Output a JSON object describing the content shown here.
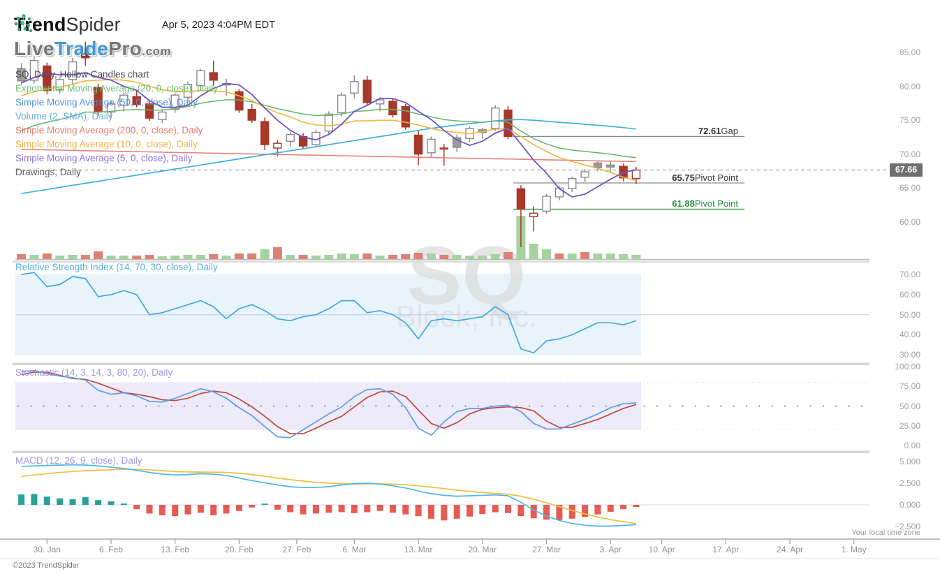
{
  "header": {
    "brand_bold": "Trend",
    "brand_light": "Spider",
    "timestamp": "Apr 5, 2023 4:04PM EDT",
    "watermark_logo": {
      "part1": "Live",
      "part2": "Trade",
      "part3": "Pro",
      "part4": ".com"
    }
  },
  "chart_title": "SQ, Daily, Hollow Candles chart",
  "legend": {
    "items": [
      {
        "label": "Exponential Moving Average (20, 0, close), Daily",
        "color": "#6fbf73"
      },
      {
        "label": "Simple Moving Average (50, 0, close), Daily",
        "color": "#4f93d9"
      },
      {
        "label": "Volume (2, SMA), Daily",
        "color": "#64aee4"
      },
      {
        "label": "Simple Moving Average (200, 0, close), Daily",
        "color": "#e57a6e"
      },
      {
        "label": "Simple Moving Average (10, 0, close), Daily",
        "color": "#f0b23e"
      },
      {
        "label": "Simple Moving Average (5, 0, close), Daily",
        "color": "#8d6fe0"
      },
      {
        "label": "Drawings, Daily",
        "color": "#5f5f5f"
      }
    ]
  },
  "indicator_titles": {
    "rsi": "Relative Strength Index (14, 70, 30, close), Daily",
    "stoch": "Stochastic (14, 3, 14, 3, 80, 20), Daily",
    "macd": "MACD (12, 26, 9, close), Daily"
  },
  "watermark": {
    "symbol": "SQ",
    "company": "Block, Inc."
  },
  "annotations": {
    "gap": {
      "price": "72.61",
      "label": "Gap"
    },
    "pivot_upper": {
      "price": "65.75",
      "label": "Pivot Point"
    },
    "pivot_lower": {
      "price": "61.88",
      "label": "Pivot Point"
    },
    "last_price": "67.66"
  },
  "axes": {
    "price_ticks": [
      {
        "label": "85.00",
        "v": 85
      },
      {
        "label": "80.00",
        "v": 80
      },
      {
        "label": "75.00",
        "v": 75
      },
      {
        "label": "70.00",
        "v": 70
      },
      {
        "label": "65.00",
        "v": 65
      },
      {
        "label": "60.00",
        "v": 60
      }
    ],
    "rsi_ticks": [
      {
        "label": "70.00",
        "v": 70
      },
      {
        "label": "60.00",
        "v": 60
      },
      {
        "label": "50.00",
        "v": 50
      },
      {
        "label": "40.00",
        "v": 40
      },
      {
        "label": "30.00",
        "v": 30
      }
    ],
    "stoch_ticks": [
      {
        "label": "100.00",
        "v": 100
      },
      {
        "label": "75.00",
        "v": 75
      },
      {
        "label": "50.00",
        "v": 50
      },
      {
        "label": "25.00",
        "v": 25
      },
      {
        "label": "0.00",
        "v": 0
      }
    ],
    "macd_ticks": [
      {
        "label": "5.000",
        "v": 5
      },
      {
        "label": "2.500",
        "v": 2.5
      },
      {
        "label": "0.000",
        "v": 0
      },
      {
        "label": "−2.500",
        "v": -2.5
      }
    ],
    "dates": [
      [
        "30. Jan",
        2
      ],
      [
        "6. Feb",
        7
      ],
      [
        "13. Feb",
        12
      ],
      [
        "20. Feb",
        17
      ],
      [
        "27. Feb",
        21.5
      ],
      [
        "6. Mar",
        26
      ],
      [
        "13. Mar",
        31
      ],
      [
        "20. Mar",
        36
      ],
      [
        "27. Mar",
        41
      ],
      [
        "3. Apr",
        46
      ],
      [
        "10. Apr",
        50
      ],
      [
        "17. Apr",
        55
      ],
      [
        "24. Apr",
        60
      ],
      [
        "1. May",
        65
      ]
    ],
    "timezone_note": "Your local time zone"
  },
  "footer": {
    "copyright": "©2023 TrendSpider"
  },
  "chart_data": {
    "type": "candlestick",
    "symbol": "SQ",
    "company": "Block, Inc.",
    "timeframe": "Daily",
    "style": "Hollow Candles",
    "levels": {
      "gap": 72.61,
      "pivot_upper": 65.75,
      "pivot_lower": 61.88,
      "last_close": 67.66
    },
    "candles": [
      [
        82.6,
        83.4,
        80.2,
        80.8,
        "fg"
      ],
      [
        80.9,
        84.4,
        80.4,
        83.8,
        "hg"
      ],
      [
        83.0,
        83.5,
        78.8,
        79.4,
        "fr"
      ],
      [
        79.5,
        81.3,
        78.9,
        81.0,
        "hg"
      ],
      [
        81.0,
        84.2,
        80.2,
        83.6,
        "hg"
      ],
      [
        84.8,
        86.6,
        83.0,
        84.2,
        "fr"
      ],
      [
        79.8,
        80.4,
        75.6,
        76.2,
        "fr"
      ],
      [
        76.2,
        77.9,
        75.4,
        77.4,
        "hg"
      ],
      [
        77.2,
        79.1,
        76.3,
        78.7,
        "hg"
      ],
      [
        78.5,
        79.3,
        76.9,
        77.3,
        "fr"
      ],
      [
        77.4,
        78.0,
        74.9,
        75.3,
        "fr"
      ],
      [
        75.1,
        76.6,
        74.6,
        76.2,
        "hg"
      ],
      [
        76.6,
        79.0,
        76.1,
        78.7,
        "hg"
      ],
      [
        78.4,
        80.7,
        77.6,
        80.3,
        "hg"
      ],
      [
        80.1,
        82.6,
        79.4,
        82.3,
        "hg"
      ],
      [
        82.0,
        83.8,
        80.1,
        80.9,
        "fr"
      ],
      [
        80.2,
        81.1,
        78.6,
        80.4,
        "hg"
      ],
      [
        79.2,
        79.6,
        76.1,
        76.5,
        "fr"
      ],
      [
        76.6,
        77.4,
        74.6,
        75.0,
        "fr"
      ],
      [
        74.8,
        75.4,
        70.6,
        71.4,
        "fr"
      ],
      [
        70.9,
        72.1,
        69.7,
        71.6,
        "hr"
      ],
      [
        71.9,
        73.3,
        71.1,
        72.9,
        "hg"
      ],
      [
        72.6,
        73.1,
        70.7,
        71.2,
        "fr"
      ],
      [
        71.4,
        73.6,
        71.0,
        73.2,
        "hg"
      ],
      [
        73.4,
        76.3,
        72.9,
        75.9,
        "hg"
      ],
      [
        76.1,
        79.1,
        75.6,
        78.7,
        "hg"
      ],
      [
        79.0,
        81.6,
        78.2,
        80.7,
        "hg"
      ],
      [
        80.9,
        81.5,
        77.2,
        77.6,
        "fr"
      ],
      [
        77.4,
        78.4,
        76.3,
        78.0,
        "hg"
      ],
      [
        77.8,
        78.2,
        75.4,
        75.8,
        "fr"
      ],
      [
        77.0,
        77.4,
        73.6,
        74.0,
        "fr"
      ],
      [
        72.8,
        73.4,
        68.4,
        70.0,
        "fr"
      ],
      [
        70.2,
        72.6,
        69.6,
        72.2,
        "hg"
      ],
      [
        70.8,
        71.5,
        68.3,
        70.9,
        "hr"
      ],
      [
        71.0,
        72.9,
        70.3,
        72.4,
        "fg"
      ],
      [
        72.3,
        74.1,
        71.8,
        73.8,
        "hg"
      ],
      [
        73.2,
        73.9,
        72.3,
        73.6,
        "fg"
      ],
      [
        73.8,
        77.2,
        73.4,
        76.8,
        "hg"
      ],
      [
        76.5,
        77.1,
        72.2,
        72.6,
        "fr"
      ],
      [
        64.9,
        65.4,
        56.3,
        61.88,
        "fr"
      ],
      [
        60.8,
        62.3,
        58.6,
        61.3,
        "hr"
      ],
      [
        61.6,
        64.1,
        61.2,
        63.8,
        "hg"
      ],
      [
        63.7,
        65.3,
        63.2,
        65.0,
        "hg"
      ],
      [
        64.9,
        66.7,
        64.4,
        66.4,
        "hg"
      ],
      [
        66.6,
        67.8,
        65.9,
        67.4,
        "hg"
      ],
      [
        68.7,
        69.1,
        67.5,
        68.0,
        "fg"
      ],
      [
        68.1,
        68.9,
        67.3,
        68.4,
        "fg"
      ],
      [
        68.2,
        68.6,
        66.0,
        66.5,
        "fr"
      ],
      [
        66.4,
        68.1,
        65.6,
        67.66,
        "hr"
      ]
    ],
    "volume": [
      [
        7,
        "r"
      ],
      [
        6,
        "g"
      ],
      [
        8,
        "r"
      ],
      [
        5,
        "g"
      ],
      [
        6,
        "g"
      ],
      [
        6,
        "r"
      ],
      [
        11,
        "r"
      ],
      [
        5,
        "g"
      ],
      [
        5,
        "g"
      ],
      [
        5,
        "r"
      ],
      [
        6,
        "r"
      ],
      [
        4,
        "g"
      ],
      [
        5,
        "g"
      ],
      [
        6,
        "g"
      ],
      [
        6,
        "g"
      ],
      [
        7,
        "r"
      ],
      [
        5,
        "g"
      ],
      [
        8,
        "r"
      ],
      [
        8,
        "r"
      ],
      [
        14,
        "g"
      ],
      [
        17,
        "r"
      ],
      [
        6,
        "g"
      ],
      [
        6,
        "r"
      ],
      [
        5,
        "g"
      ],
      [
        6,
        "g"
      ],
      [
        8,
        "g"
      ],
      [
        7,
        "g"
      ],
      [
        8,
        "r"
      ],
      [
        5,
        "g"
      ],
      [
        6,
        "r"
      ],
      [
        7,
        "r"
      ],
      [
        9,
        "r"
      ],
      [
        8,
        "g"
      ],
      [
        6,
        "r"
      ],
      [
        6,
        "g"
      ],
      [
        5,
        "g"
      ],
      [
        5,
        "g"
      ],
      [
        7,
        "g"
      ],
      [
        10,
        "r"
      ],
      [
        62,
        "g"
      ],
      [
        22,
        "g"
      ],
      [
        14,
        "g"
      ],
      [
        8,
        "r"
      ],
      [
        8,
        "g"
      ],
      [
        10,
        "r"
      ],
      [
        8,
        "g"
      ],
      [
        8,
        "g"
      ],
      [
        7,
        "g"
      ],
      [
        6,
        "g"
      ]
    ],
    "ema20": [
      73.5,
      74.2,
      74.7,
      75.1,
      75.6,
      76.2,
      76.2,
      76.3,
      76.5,
      76.6,
      76.5,
      76.5,
      76.7,
      77.0,
      77.5,
      77.8,
      78.0,
      78.0,
      77.7,
      77.2,
      76.7,
      76.3,
      75.9,
      75.7,
      75.7,
      75.9,
      76.3,
      76.4,
      76.6,
      76.6,
      76.4,
      75.9,
      75.5,
      75.1,
      74.9,
      74.8,
      74.7,
      74.9,
      74.7,
      73.4,
      72.3,
      71.5,
      70.9,
      70.6,
      70.4,
      70.2,
      70.0,
      69.7,
      69.5
    ],
    "sma50": [
      64.2,
      64.5,
      64.8,
      65.1,
      65.4,
      65.7,
      66.0,
      66.3,
      66.6,
      66.9,
      67.2,
      67.5,
      67.8,
      68.1,
      68.4,
      68.7,
      69.0,
      69.3,
      69.6,
      69.9,
      70.2,
      70.5,
      70.8,
      71.1,
      71.4,
      71.7,
      72.0,
      72.3,
      72.6,
      72.9,
      73.2,
      73.5,
      73.8,
      74.05,
      74.3,
      74.5,
      74.7,
      74.9,
      75.05,
      75.1,
      75.0,
      74.85,
      74.7,
      74.55,
      74.4,
      74.25,
      74.1,
      73.9,
      73.7
    ],
    "sma200": [
      70.7,
      70.66,
      70.63,
      70.59,
      70.55,
      70.51,
      70.48,
      70.44,
      70.4,
      70.36,
      70.33,
      70.29,
      70.25,
      70.21,
      70.18,
      70.14,
      70.1,
      70.06,
      70.03,
      69.99,
      69.95,
      69.91,
      69.88,
      69.84,
      69.8,
      69.76,
      69.73,
      69.69,
      69.65,
      69.61,
      69.58,
      69.54,
      69.5,
      69.46,
      69.43,
      69.39,
      69.35,
      69.31,
      69.28,
      69.24,
      69.2,
      69.16,
      69.13,
      69.09,
      69.05,
      69.01,
      68.98,
      68.94,
      68.9
    ],
    "sma10": [
      78.6,
      79.2,
      79.6,
      79.9,
      80.3,
      80.8,
      80.9,
      81.0,
      80.9,
      80.6,
      80.0,
      79.5,
      79.2,
      79.2,
      79.4,
      79.3,
      79.2,
      78.6,
      77.9,
      76.9,
      76.1,
      75.5,
      74.7,
      74.3,
      74.2,
      74.4,
      74.9,
      74.9,
      75.0,
      75.0,
      74.7,
      74.3,
      73.8,
      73.4,
      73.2,
      73.0,
      73.3,
      73.7,
      73.7,
      72.6,
      71.4,
      70.4,
      69.5,
      68.9,
      68.4,
      67.9,
      67.3,
      66.6,
      66.1
    ],
    "sma5": [
      80.5,
      81.3,
      81.9,
      81.7,
      81.7,
      82.0,
      81.3,
      80.9,
      80.0,
      79.4,
      77.9,
      76.9,
      76.9,
      77.2,
      78.6,
      79.7,
      80.4,
      80.2,
      78.8,
      76.8,
      75.0,
      73.5,
      72.5,
      72.1,
      72.9,
      74.4,
      76.3,
      77.2,
      78.2,
      78.2,
      77.6,
      76.3,
      75.1,
      73.5,
      72.1,
      71.3,
      71.9,
      73.1,
      73.8,
      71.5,
      69.1,
      67.2,
      64.9,
      63.7,
      64.1,
      65.2,
      66.3,
      67.3,
      67.7
    ],
    "rsi": [
      70,
      71,
      64,
      65,
      69,
      68,
      59,
      60,
      62,
      60,
      50,
      51,
      53,
      55,
      57,
      54,
      48,
      53,
      55,
      52,
      48,
      47,
      49,
      50,
      53,
      57,
      57,
      51,
      52,
      50,
      46,
      38,
      47,
      48,
      47,
      48,
      49,
      54,
      50,
      33,
      31,
      37,
      38,
      40,
      43,
      46,
      46,
      45,
      47
    ],
    "stoch_k": [
      94,
      95,
      91,
      88,
      86,
      83,
      70,
      65,
      67,
      63,
      56,
      55,
      60,
      66,
      72,
      68,
      60,
      48,
      38,
      24,
      11,
      10,
      20,
      30,
      40,
      49,
      62,
      71,
      72,
      65,
      48,
      22,
      13,
      30,
      43,
      47,
      47,
      50,
      51,
      43,
      28,
      21,
      21,
      27,
      33,
      40,
      48,
      53,
      54
    ],
    "stoch_d": [
      90,
      93,
      93,
      89,
      85,
      84,
      79,
      73,
      67,
      65,
      62,
      58,
      57,
      60,
      66,
      69,
      67,
      59,
      49,
      37,
      24,
      15,
      15,
      22,
      30,
      37,
      49,
      61,
      68,
      69,
      62,
      45,
      28,
      22,
      29,
      40,
      46,
      48,
      49,
      48,
      44,
      31,
      23,
      23,
      28,
      33,
      40,
      47,
      52
    ],
    "macd": [
      4.45,
      4.5,
      4.55,
      4.6,
      4.62,
      4.6,
      4.5,
      4.35,
      4.2,
      4.0,
      3.75,
      3.55,
      3.45,
      3.5,
      3.6,
      3.55,
      3.4,
      3.1,
      2.8,
      2.55,
      2.3,
      2.1,
      2.0,
      2.0,
      2.1,
      2.3,
      2.45,
      2.5,
      2.4,
      2.2,
      1.95,
      1.6,
      1.3,
      1.1,
      1.0,
      1.05,
      1.1,
      1.15,
      1.05,
      0.3,
      -0.6,
      -1.3,
      -1.8,
      -2.15,
      -2.35,
      -2.45,
      -2.45,
      -2.38,
      -2.28
    ],
    "macd_signal": [
      3.3,
      3.45,
      3.6,
      3.75,
      3.85,
      3.95,
      4.0,
      4.05,
      4.1,
      4.1,
      4.05,
      3.95,
      3.85,
      3.8,
      3.78,
      3.78,
      3.75,
      3.65,
      3.5,
      3.3,
      3.1,
      2.9,
      2.75,
      2.6,
      2.5,
      2.45,
      2.42,
      2.42,
      2.42,
      2.4,
      2.32,
      2.2,
      2.05,
      1.88,
      1.7,
      1.55,
      1.42,
      1.32,
      1.22,
      1.0,
      0.65,
      0.25,
      -0.2,
      -0.65,
      -1.05,
      -1.4,
      -1.7,
      -1.95,
      -2.15
    ],
    "macd_hist": [
      1.2,
      1.25,
      0.95,
      0.75,
      0.65,
      0.9,
      0.55,
      0.4,
      0.15,
      -0.5,
      -1.0,
      -1.2,
      -1.3,
      -1.1,
      -0.9,
      -1.2,
      -1.0,
      -0.7,
      -0.3,
      0.15,
      -0.55,
      -0.85,
      -1.1,
      -1.0,
      -0.9,
      -0.85,
      -0.95,
      -0.85,
      -0.7,
      -0.9,
      -1.1,
      -1.3,
      -1.6,
      -1.8,
      -1.6,
      -1.35,
      -1.05,
      -0.85,
      -0.95,
      -1.3,
      -1.55,
      -1.7,
      -1.75,
      -1.6,
      -1.4,
      -1.1,
      -0.8,
      -0.5,
      -0.25
    ],
    "colors": {
      "candle_up": "#8a8a8a",
      "candle_up_fill": "#9b9b9b",
      "candle_down": "#a8382a",
      "vol_up": "#a4d3a0",
      "vol_down": "#dd8176",
      "ema20": "#66b56a",
      "sma50": "#3fb0e0",
      "sma200": "#e4837a",
      "sma10": "#f2b63c",
      "sma5": "#6e52cf",
      "rsi_line": "#45a7de",
      "rsi_band": "#e8f4fa",
      "stoch_k": "#5f9ce8",
      "stoch_d": "#c04a3a",
      "stoch_band": "#edeafa",
      "macd_line": "#4cb7ea",
      "macd_sig": "#f0be3d",
      "hist_pos": "#2aa198",
      "hist_neg": "#e65b52",
      "gap_line": "#8c8c8c",
      "pivot_line": "#8c8c8c",
      "pivot_green": "#3f9c42",
      "last_dash": "#9e9e9e"
    }
  }
}
